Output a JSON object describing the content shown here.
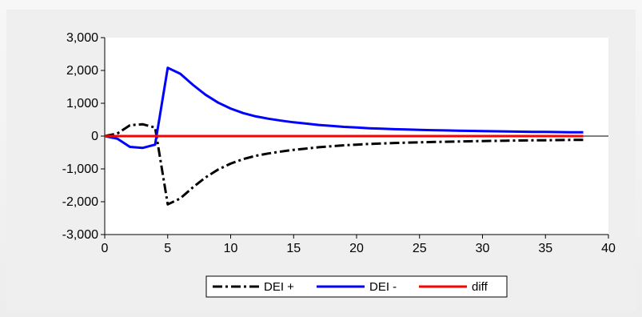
{
  "chart_data": {
    "type": "line",
    "title": "",
    "xlabel": "",
    "ylabel": "",
    "xlim": [
      0,
      40
    ],
    "ylim": [
      -3000,
      3000
    ],
    "x_ticks": [
      "0",
      "5",
      "10",
      "15",
      "20",
      "25",
      "30",
      "35",
      "40"
    ],
    "y_ticks": [
      "3,000",
      "2,000",
      "1,000",
      "0",
      "-1,000",
      "-2,000",
      "-3,000"
    ],
    "grid": false,
    "legend_position": "bottom-center",
    "x": [
      0,
      1,
      2,
      3,
      4,
      5,
      6,
      7,
      8,
      9,
      10,
      11,
      12,
      13,
      14,
      15,
      16,
      17,
      18,
      19,
      20,
      21,
      22,
      23,
      24,
      25,
      26,
      27,
      28,
      29,
      30,
      31,
      32,
      33,
      34,
      35,
      36,
      37,
      38
    ],
    "series": [
      {
        "name": "DEI +",
        "color": "#000000",
        "dash": "dashdot",
        "values": [
          0,
          80,
          330,
          360,
          260,
          -2080,
          -1900,
          -1560,
          -1260,
          -1020,
          -840,
          -700,
          -600,
          -530,
          -470,
          -420,
          -380,
          -340,
          -310,
          -280,
          -260,
          -240,
          -225,
          -210,
          -200,
          -190,
          -180,
          -172,
          -165,
          -158,
          -152,
          -146,
          -140,
          -135,
          -130,
          -126,
          -122,
          -118,
          -115
        ]
      },
      {
        "name": "DEI -",
        "color": "#0000ff",
        "dash": "solid",
        "values": [
          0,
          -80,
          -330,
          -360,
          -260,
          2080,
          1900,
          1560,
          1260,
          1020,
          840,
          700,
          600,
          530,
          470,
          420,
          380,
          340,
          310,
          280,
          260,
          240,
          225,
          210,
          200,
          190,
          180,
          172,
          165,
          158,
          152,
          146,
          140,
          135,
          130,
          126,
          122,
          118,
          115
        ]
      },
      {
        "name": "diff",
        "color": "#ff0000",
        "dash": "solid",
        "values": [
          0,
          0,
          0,
          0,
          0,
          0,
          0,
          0,
          0,
          0,
          0,
          0,
          0,
          0,
          0,
          0,
          0,
          0,
          0,
          0,
          0,
          0,
          0,
          0,
          0,
          0,
          0,
          0,
          0,
          0,
          0,
          0,
          0,
          0,
          0,
          0,
          0,
          0,
          0
        ]
      }
    ]
  }
}
